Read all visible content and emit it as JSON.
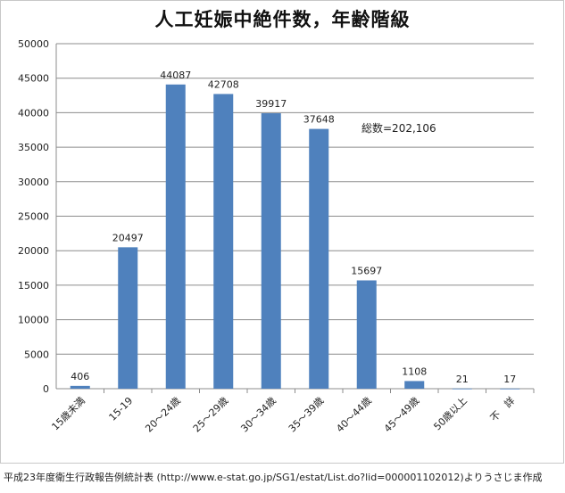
{
  "chart_data": {
    "type": "bar",
    "title": "人工妊娠中絶件数，年齢階級",
    "categories": [
      "15歳未満",
      "15-19",
      "20～24歳",
      "25～29歳",
      "30～34歳",
      "35～39歳",
      "40～44歳",
      "45～49歳",
      "50歳以上",
      "不　詳"
    ],
    "values": [
      406,
      20497,
      44087,
      42708,
      39917,
      37648,
      15697,
      1108,
      21,
      17
    ],
    "ylim": [
      0,
      50000
    ],
    "yticks": [
      0,
      5000,
      10000,
      15000,
      20000,
      25000,
      30000,
      35000,
      40000,
      45000,
      50000
    ],
    "grid": true,
    "bar_color": "#4f81bd",
    "annotation": "総数=202,106"
  },
  "footer": {
    "source": "平成23年度衛生行政報告例統計表 (http://www.e-stat.go.jp/SG1/estat/List.do?lid=000001102012)よりうさじま作成"
  }
}
